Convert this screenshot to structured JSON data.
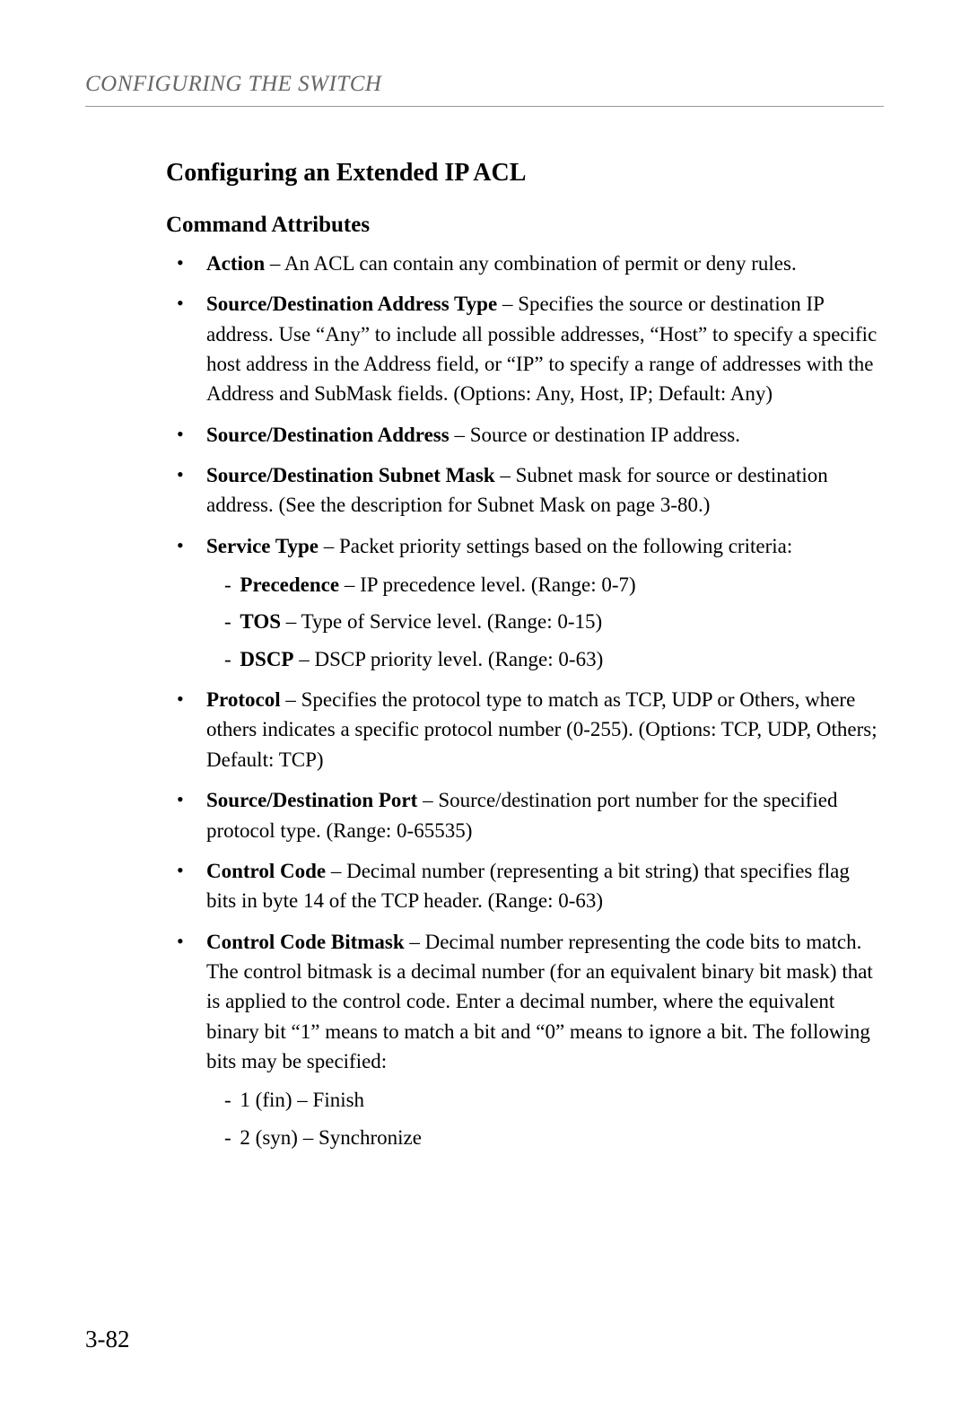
{
  "running_header": "CONFIGURING THE SWITCH",
  "section_title": "Configuring an Extended IP ACL",
  "subsection_title": "Command Attributes",
  "items": [
    {
      "label": "Action",
      "desc": " – An ACL can contain any combination of permit or deny rules."
    },
    {
      "label": "Source/Destination Address Type",
      "desc": " – Specifies the source or destination IP address. Use “Any” to include all possible addresses, “Host” to specify a specific host address in the Address field, or “IP” to specify a range of addresses with the Address and SubMask fields. (Options: Any, Host, IP; Default: Any)"
    },
    {
      "label": "Source/Destination Address",
      "desc": " – Source or destination IP address."
    },
    {
      "label": "Source/Destination Subnet Mask",
      "desc": " – Subnet mask for source or destination address. (See the description for Subnet Mask on page 3-80.)"
    },
    {
      "label": "Service Type",
      "desc": " – Packet priority settings based on the following criteria:",
      "sub": [
        {
          "sublabel": "Precedence",
          "subdesc": " – IP precedence level. (Range: 0-7)"
        },
        {
          "sublabel": "TOS",
          "subdesc": " – Type of Service level. (Range: 0-15)"
        },
        {
          "sublabel": "DSCP",
          "subdesc": " – DSCP priority level. (Range: 0-63)"
        }
      ]
    },
    {
      "label": "Protocol",
      "desc": " – Specifies the protocol type to match as TCP, UDP or Others, where others indicates a specific protocol number (0-255). (Options: TCP, UDP, Others; Default: TCP)"
    },
    {
      "label": "Source/Destination Port",
      "desc": " – Source/destination port number for the specified protocol type. (Range: 0-65535)"
    },
    {
      "label": "Control Code",
      "desc": " – Decimal number (representing a bit string) that specifies flag bits in byte 14 of the TCP header. (Range: 0-63)"
    },
    {
      "label": "Control Code Bitmask",
      "desc": " – Decimal number representing the code bits to match. The control bitmask is a decimal number (for an equivalent binary bit mask) that is applied to the control code. Enter a decimal number, where the equivalent binary bit “1” means to match a bit and “0” means to ignore a bit. The following bits may be specified:",
      "sub2": [
        {
          "text": "1 (fin) – Finish"
        },
        {
          "text": "2 (syn) – Synchronize"
        }
      ]
    }
  ],
  "page_number": "3-82",
  "colors": {
    "text": "#000000",
    "header_text": "#666666",
    "rule": "#999999",
    "background": "#ffffff"
  },
  "typography": {
    "body_fontsize": 23,
    "title_fontsize": 28,
    "subtitle_fontsize": 25,
    "header_fontsize": 25,
    "pagenum_fontsize": 27
  }
}
